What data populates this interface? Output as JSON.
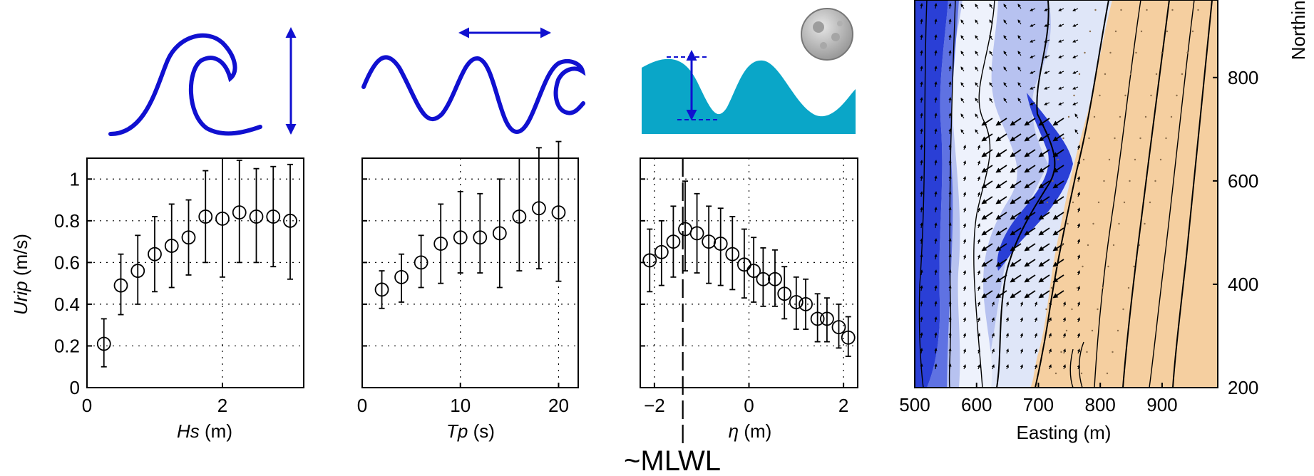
{
  "colors": {
    "wave_icon": "#1010d0",
    "tide_fill": "#0aa6c8",
    "sand": "#f5cfa0",
    "deep_blue": "#2a3fd6",
    "marker": "#000000"
  },
  "icons": [
    "breaking-wave-height-icon",
    "wave-period-icon",
    "tide-moon-icon"
  ],
  "annotation": {
    "mlwl": "~MLWL",
    "mlwl_x": -1.4
  },
  "chart_data": [
    {
      "type": "scatter",
      "error_bars": true,
      "xlabel": {
        "var": "Hs",
        "unit": " (m)"
      },
      "ylabel": {
        "var": "Urip",
        "unit": " (m/s)"
      },
      "xlim": [
        0,
        3.2
      ],
      "ylim": [
        0,
        1.1
      ],
      "xticks": [
        0,
        2
      ],
      "yticks": [
        0,
        0.2,
        0.4,
        0.6,
        0.8,
        1
      ],
      "grid": true,
      "points": [
        {
          "x": 0.25,
          "y": 0.21,
          "lo": 0.1,
          "hi": 0.33
        },
        {
          "x": 0.5,
          "y": 0.49,
          "lo": 0.35,
          "hi": 0.64
        },
        {
          "x": 0.75,
          "y": 0.56,
          "lo": 0.4,
          "hi": 0.73
        },
        {
          "x": 1.0,
          "y": 0.64,
          "lo": 0.46,
          "hi": 0.82
        },
        {
          "x": 1.25,
          "y": 0.68,
          "lo": 0.48,
          "hi": 0.88
        },
        {
          "x": 1.5,
          "y": 0.72,
          "lo": 0.54,
          "hi": 0.9
        },
        {
          "x": 1.75,
          "y": 0.82,
          "lo": 0.6,
          "hi": 1.04
        },
        {
          "x": 2.0,
          "y": 0.81,
          "lo": 0.53,
          "hi": 1.1
        },
        {
          "x": 2.25,
          "y": 0.84,
          "lo": 0.6,
          "hi": 1.09
        },
        {
          "x": 2.5,
          "y": 0.82,
          "lo": 0.6,
          "hi": 1.05
        },
        {
          "x": 2.75,
          "y": 0.82,
          "lo": 0.58,
          "hi": 1.06
        },
        {
          "x": 3.0,
          "y": 0.8,
          "lo": 0.52,
          "hi": 1.07
        }
      ]
    },
    {
      "type": "scatter",
      "error_bars": true,
      "xlabel": {
        "var": "Tp",
        "unit": " (s)"
      },
      "xlim": [
        0,
        22
      ],
      "ylim": [
        0,
        1.1
      ],
      "xticks": [
        0,
        10,
        20
      ],
      "grid": true,
      "points": [
        {
          "x": 2,
          "y": 0.47,
          "lo": 0.38,
          "hi": 0.56
        },
        {
          "x": 4,
          "y": 0.53,
          "lo": 0.41,
          "hi": 0.64
        },
        {
          "x": 6,
          "y": 0.6,
          "lo": 0.48,
          "hi": 0.73
        },
        {
          "x": 8,
          "y": 0.69,
          "lo": 0.5,
          "hi": 0.88
        },
        {
          "x": 10,
          "y": 0.72,
          "lo": 0.55,
          "hi": 0.94
        },
        {
          "x": 12,
          "y": 0.72,
          "lo": 0.55,
          "hi": 0.93
        },
        {
          "x": 14,
          "y": 0.74,
          "lo": 0.48,
          "hi": 1.0
        },
        {
          "x": 16,
          "y": 0.82,
          "lo": 0.56,
          "hi": 1.1
        },
        {
          "x": 18,
          "y": 0.86,
          "lo": 0.57,
          "hi": 1.15
        },
        {
          "x": 20,
          "y": 0.84,
          "lo": 0.51,
          "hi": 1.18
        }
      ]
    },
    {
      "type": "scatter",
      "error_bars": true,
      "xlabel": {
        "var": "η",
        "unit": " (m)"
      },
      "xlim": [
        -2.3,
        2.3
      ],
      "ylim": [
        0,
        1.1
      ],
      "xticks": [
        -2,
        0,
        2
      ],
      "grid": true,
      "points": [
        {
          "x": -2.1,
          "y": 0.61,
          "lo": 0.46,
          "hi": 0.76
        },
        {
          "x": -1.85,
          "y": 0.65,
          "lo": 0.49,
          "hi": 0.8
        },
        {
          "x": -1.6,
          "y": 0.7,
          "lo": 0.53,
          "hi": 0.87
        },
        {
          "x": -1.35,
          "y": 0.76,
          "lo": 0.56,
          "hi": 0.99
        },
        {
          "x": -1.1,
          "y": 0.74,
          "lo": 0.55,
          "hi": 0.93
        },
        {
          "x": -0.85,
          "y": 0.7,
          "lo": 0.5,
          "hi": 0.87
        },
        {
          "x": -0.6,
          "y": 0.69,
          "lo": 0.49,
          "hi": 0.86
        },
        {
          "x": -0.35,
          "y": 0.64,
          "lo": 0.47,
          "hi": 0.82
        },
        {
          "x": -0.1,
          "y": 0.59,
          "lo": 0.43,
          "hi": 0.76
        },
        {
          "x": 0.1,
          "y": 0.56,
          "lo": 0.41,
          "hi": 0.72
        },
        {
          "x": 0.3,
          "y": 0.52,
          "lo": 0.39,
          "hi": 0.67
        },
        {
          "x": 0.55,
          "y": 0.52,
          "lo": 0.39,
          "hi": 0.66
        },
        {
          "x": 0.75,
          "y": 0.45,
          "lo": 0.33,
          "hi": 0.58
        },
        {
          "x": 1.0,
          "y": 0.41,
          "lo": 0.28,
          "hi": 0.53
        },
        {
          "x": 1.2,
          "y": 0.4,
          "lo": 0.28,
          "hi": 0.52
        },
        {
          "x": 1.45,
          "y": 0.33,
          "lo": 0.22,
          "hi": 0.45
        },
        {
          "x": 1.65,
          "y": 0.33,
          "lo": 0.22,
          "hi": 0.43
        },
        {
          "x": 1.9,
          "y": 0.29,
          "lo": 0.19,
          "hi": 0.4
        },
        {
          "x": 2.1,
          "y": 0.24,
          "lo": 0.15,
          "hi": 0.34
        }
      ]
    },
    {
      "type": "heatmap",
      "description_kind": "bathymetry_flow_vector_map",
      "xlabel": "Easting (m)",
      "ylabel": "Northing (m)",
      "xlim": [
        500,
        990
      ],
      "ylim": [
        200,
        950
      ],
      "xticks": [
        500,
        600,
        700,
        800,
        900
      ],
      "yticks": [
        200,
        400,
        600,
        800
      ],
      "yaxis_side": "right"
    }
  ]
}
